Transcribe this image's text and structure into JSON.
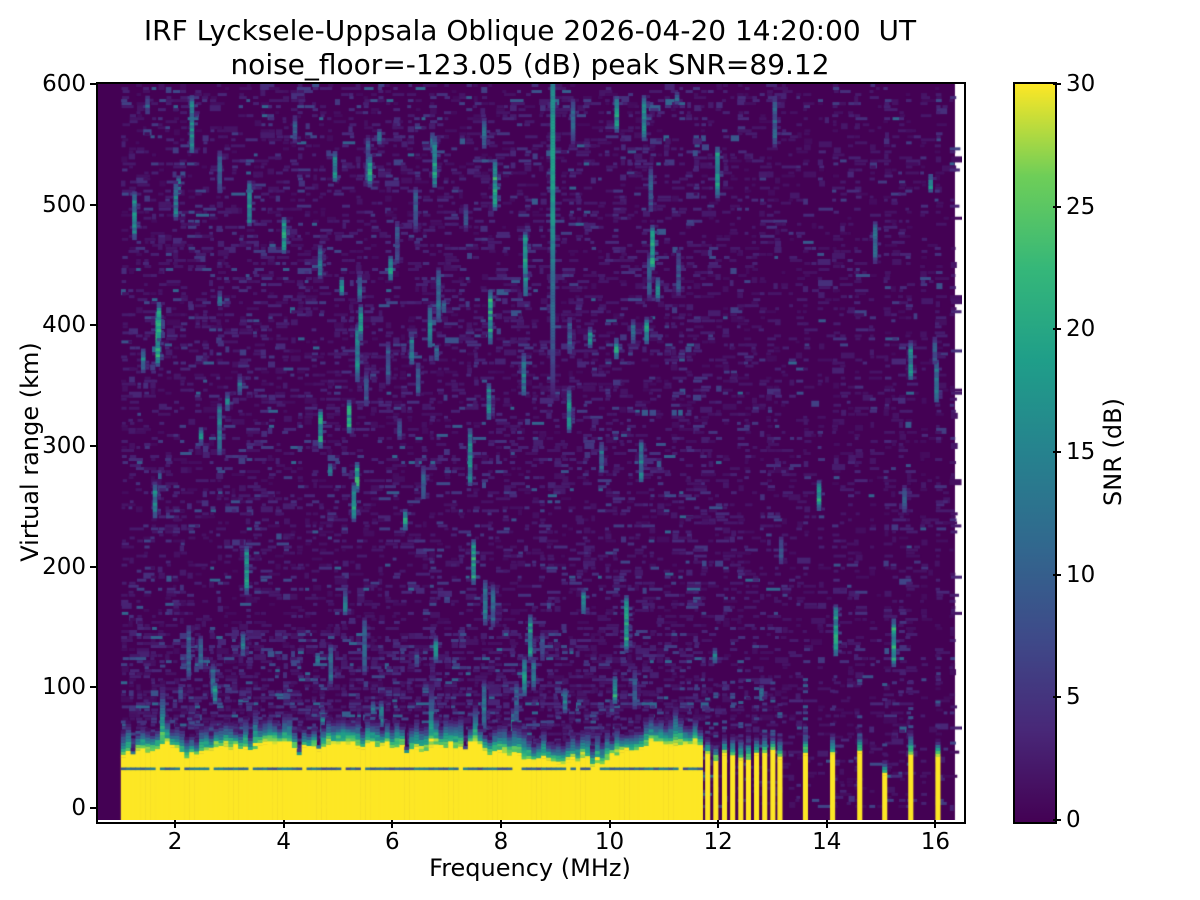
{
  "figure": {
    "background_color": "#ffffff",
    "title_line1": "IRF Lycksele-Uppsala Oblique 2026-04-20 14:20:00  UT",
    "title_line2": "noise_floor=-123.05 (dB) peak SNR=89.12"
  },
  "chart_data": {
    "type": "heatmap",
    "title": "IRF Lycksele-Uppsala Oblique 2026-04-20 14:20:00  UT",
    "subtitle": "noise_floor=-123.05 (dB) peak SNR=89.12",
    "xlabel": "Frequency (MHz)",
    "ylabel": "Virtual range (km)",
    "xlim": [
      0.58,
      16.49
    ],
    "ylim": [
      -10,
      600
    ],
    "xticks": [
      2,
      4,
      6,
      8,
      10,
      12,
      14,
      16
    ],
    "yticks": [
      0,
      100,
      200,
      300,
      400,
      500,
      600
    ],
    "grid": false,
    "noise_floor_db": -123.05,
    "peak_snr_db": 89.12,
    "colorbar": {
      "label": "SNR (dB)",
      "vmin": 0,
      "vmax": 30,
      "ticks": [
        0,
        5,
        10,
        15,
        20,
        25,
        30
      ],
      "colormap": "viridis"
    },
    "colormap_stops": [
      [
        0.0,
        "#440154"
      ],
      [
        0.125,
        "#482878"
      ],
      [
        0.25,
        "#3e4a89"
      ],
      [
        0.375,
        "#31688e"
      ],
      [
        0.5,
        "#26828e"
      ],
      [
        0.625,
        "#1f9e89"
      ],
      [
        0.75,
        "#35b779"
      ],
      [
        0.875,
        "#6ece58"
      ],
      [
        1.0,
        "#fde725"
      ]
    ],
    "features": {
      "data_freq_start_mhz": 1.0,
      "data_freq_end_mhz": 16.36,
      "background_snr_db": 0,
      "ground_clutter": {
        "freq_start_mhz": 1.0,
        "freq_end_mhz": 11.63,
        "saturated_top_km_mean": 42,
        "fringe_top_km_max": 75,
        "internal_dark_line_km": 33.5,
        "snr_db": 30
      },
      "rfi_stripes_mhz": [
        11.76,
        11.91,
        12.07,
        12.22,
        12.37,
        12.51,
        12.66,
        12.81,
        12.96,
        13.09,
        13.56,
        14.06,
        14.56,
        15.02,
        15.5,
        16.0
      ],
      "rfi_stripe_top_km": 42,
      "echo_streak": {
        "freq_mhz": 8.91,
        "km_top": 600,
        "km_bottom": 340,
        "snr_db_typical": 14
      },
      "speckle": {
        "seed": 42,
        "description": "sparse teal vertical echo dashes and faint blue horizontal noise over dark viridis background, denser below 150 km and at low frequencies"
      }
    }
  }
}
